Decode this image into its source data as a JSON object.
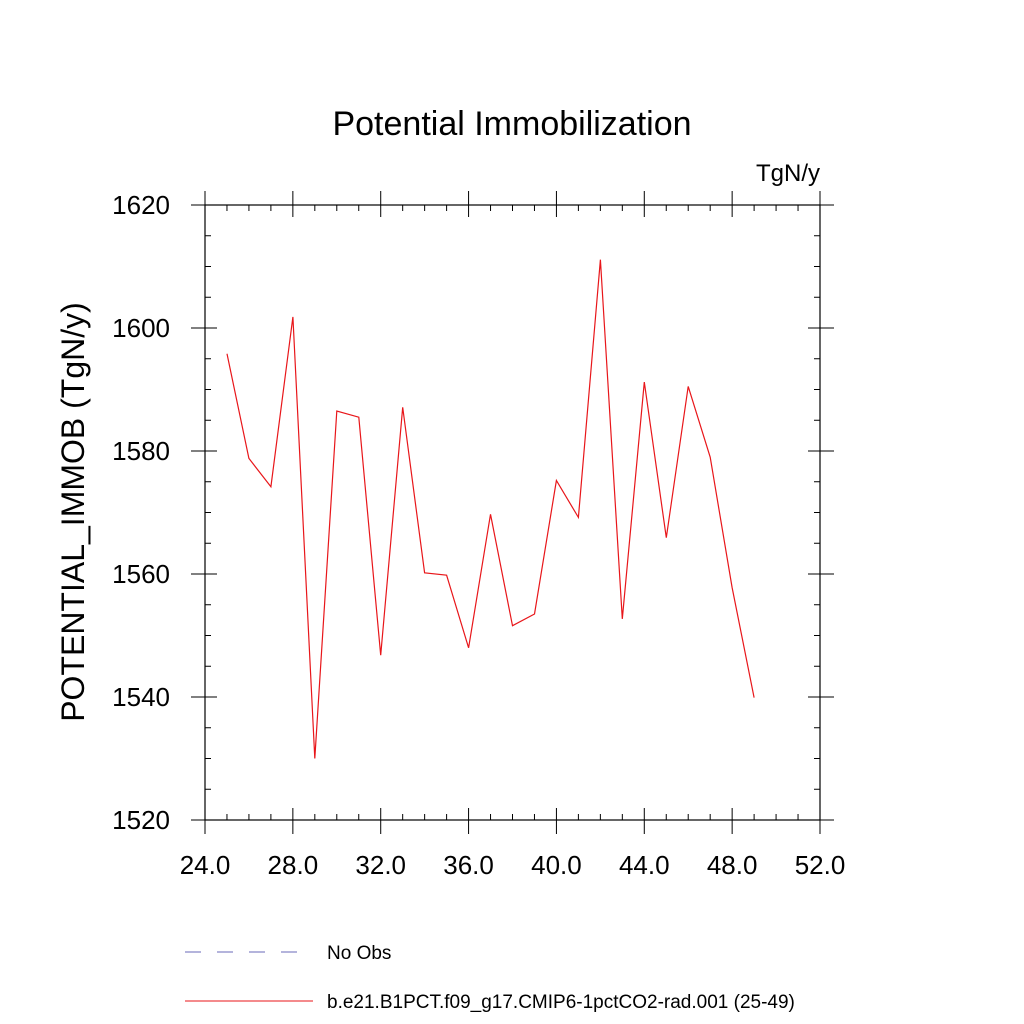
{
  "chart_data": {
    "type": "line",
    "title": "Potential Immobilization",
    "units_label": "TgN/y",
    "ylabel": "POTENTIAL_IMMOB  (TgN/y)",
    "xlabel": "",
    "xlim": [
      24.0,
      52.0
    ],
    "ylim": [
      1520,
      1620
    ],
    "xticks": [
      24.0,
      28.0,
      32.0,
      36.0,
      40.0,
      44.0,
      48.0,
      52.0
    ],
    "xtick_labels": [
      "24.0",
      "28.0",
      "32.0",
      "36.0",
      "40.0",
      "44.0",
      "48.0",
      "52.0"
    ],
    "yticks": [
      1520,
      1540,
      1560,
      1580,
      1600,
      1620
    ],
    "ytick_labels": [
      "1520",
      "1540",
      "1560",
      "1580",
      "1600",
      "1620"
    ],
    "grid": false,
    "legend_position": "bottom",
    "series": [
      {
        "name": "b.e21.B1PCT.f09_g17.CMIP6-1pctCO2-rad.001 (25-49)",
        "color": "#e8161a",
        "style": "solid",
        "x": [
          25,
          26,
          27,
          28,
          29,
          30,
          31,
          32,
          33,
          34,
          35,
          36,
          37,
          38,
          39,
          40,
          41,
          42,
          43,
          44,
          45,
          46,
          47,
          48,
          49
        ],
        "y": [
          1595.8,
          1578.8,
          1574.2,
          1601.8,
          1530.0,
          1586.5,
          1585.5,
          1546.8,
          1587.1,
          1560.2,
          1559.8,
          1548.0,
          1569.7,
          1551.6,
          1553.5,
          1575.2,
          1569.2,
          1611.1,
          1552.7,
          1591.2,
          1565.9,
          1590.5,
          1579.0,
          1557.8,
          1539.9
        ]
      }
    ],
    "legend": [
      {
        "label": "No Obs",
        "color": "#6a6ab8",
        "style": "dashed"
      },
      {
        "label": "b.e21.B1PCT.f09_g17.CMIP6-1pctCO2-rad.001 (25-49)",
        "color": "#e8161a",
        "style": "solid"
      }
    ]
  }
}
